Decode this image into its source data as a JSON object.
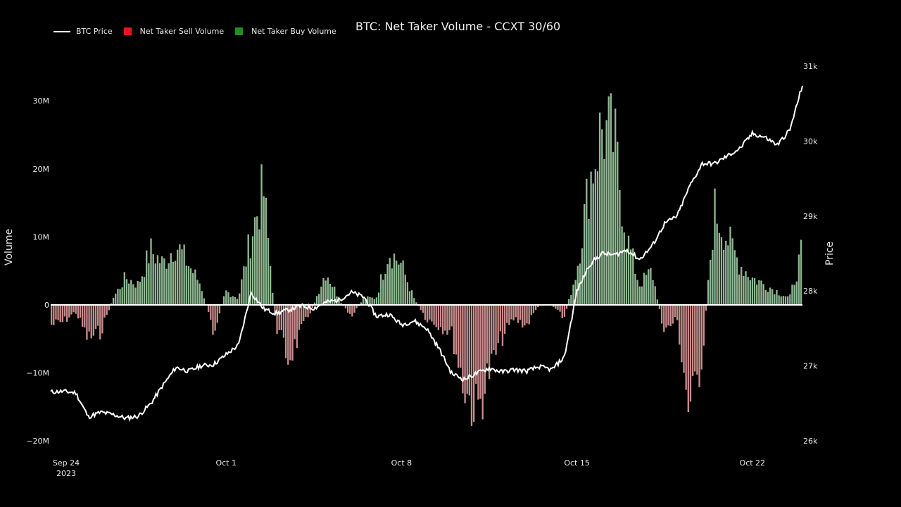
{
  "title": "BTC: Net Taker Volume - CCXT 30/60",
  "legend": {
    "price_label": "BTC Price",
    "sell_label": "Net Taker Sell Volume",
    "buy_label": "Net Taker Buy Volume"
  },
  "colors": {
    "background": "#000000",
    "price_line": "#ffffff",
    "sell_legend": "#e8161a",
    "buy_legend": "#1f8f1f",
    "sell_bar": "#c98c8c",
    "buy_bar": "#8fb893",
    "zero_line": "#ffffff",
    "text": "#e8e8e8"
  },
  "chart_data": {
    "type": "bar",
    "title": "BTC: Net Taker Volume - CCXT 30/60",
    "ylabel": "Volume",
    "y2label": "Price",
    "x_ticks": [
      "Sep 24\n2023",
      "Oct 1",
      "Oct 8",
      "Oct 15",
      "Oct 22"
    ],
    "y_ticks": [
      "30M",
      "20M",
      "10M",
      "0",
      "−10M",
      "−20M"
    ],
    "y2_ticks": [
      "31k",
      "30k",
      "29k",
      "28k",
      "27k",
      "26k"
    ],
    "ylim": [
      -20000000,
      30000000
    ],
    "y2lim": [
      26000,
      31000
    ],
    "xlim_days": [
      0,
      30
    ],
    "grid": false,
    "legend_position": "top-left",
    "volume_series": {
      "name": "Net Taker Volume (M)",
      "x_days": [
        0,
        0.5,
        1,
        1.5,
        2,
        2.5,
        3,
        3.5,
        4,
        4.5,
        5,
        5.5,
        6,
        6.5,
        7,
        7.5,
        8,
        8.5,
        9,
        9.5,
        10,
        10.5,
        11,
        11.5,
        12,
        12.5,
        13,
        13.5,
        14,
        14.5,
        15,
        15.5,
        16,
        16.5,
        17,
        17.5,
        18,
        18.5,
        19,
        19.5,
        20,
        20.5,
        21,
        21.5,
        22,
        22.5,
        23,
        23.5,
        24,
        24.5,
        25,
        25.5,
        26,
        26.5,
        27,
        27.5,
        28,
        28.5,
        29,
        29.5,
        30
      ],
      "values": [
        -3,
        -2.5,
        -1,
        -5,
        -4,
        1,
        4,
        3,
        8,
        6,
        9,
        6,
        3,
        -4,
        2,
        1,
        10,
        17,
        -3,
        -8,
        -4,
        0,
        5,
        1,
        -2,
        1,
        1,
        8,
        6,
        1,
        -2,
        -3,
        -4,
        -12,
        -16,
        -10,
        -5,
        -2,
        -3,
        0,
        0,
        -2,
        5,
        18,
        26,
        24,
        10,
        3,
        5,
        -4,
        -2,
        -16,
        -8,
        14,
        10,
        6,
        4,
        3,
        2,
        1,
        8
      ]
    },
    "price_series": {
      "name": "BTC Price",
      "x_days": [
        0,
        0.5,
        1,
        1.5,
        2,
        2.5,
        3,
        3.5,
        4,
        4.5,
        5,
        5.5,
        6,
        6.5,
        7,
        7.5,
        8,
        8.5,
        9,
        9.5,
        10,
        10.5,
        11,
        11.5,
        12,
        12.5,
        13,
        13.5,
        14,
        14.5,
        15,
        15.5,
        16,
        16.5,
        17,
        17.5,
        18,
        18.5,
        19,
        19.5,
        20,
        20.5,
        21,
        21.5,
        22,
        22.5,
        23,
        23.5,
        24,
        24.5,
        25,
        25.5,
        26,
        26.5,
        27,
        27.5,
        28,
        28.5,
        29,
        29.5,
        30
      ],
      "values": [
        26650,
        26660,
        26640,
        26320,
        26380,
        26350,
        26300,
        26330,
        26500,
        26750,
        26980,
        26930,
        27000,
        27020,
        27150,
        27280,
        27980,
        27760,
        27700,
        27750,
        27800,
        27770,
        27850,
        27880,
        27980,
        27920,
        27660,
        27690,
        27550,
        27600,
        27500,
        27230,
        26900,
        26820,
        26900,
        26970,
        26920,
        26950,
        26930,
        26990,
        26950,
        27120,
        28000,
        28350,
        28500,
        28480,
        28550,
        28420,
        28600,
        28900,
        29000,
        29400,
        29700,
        29700,
        29800,
        29900,
        30100,
        30050,
        29950,
        30150,
        30750
      ]
    }
  }
}
